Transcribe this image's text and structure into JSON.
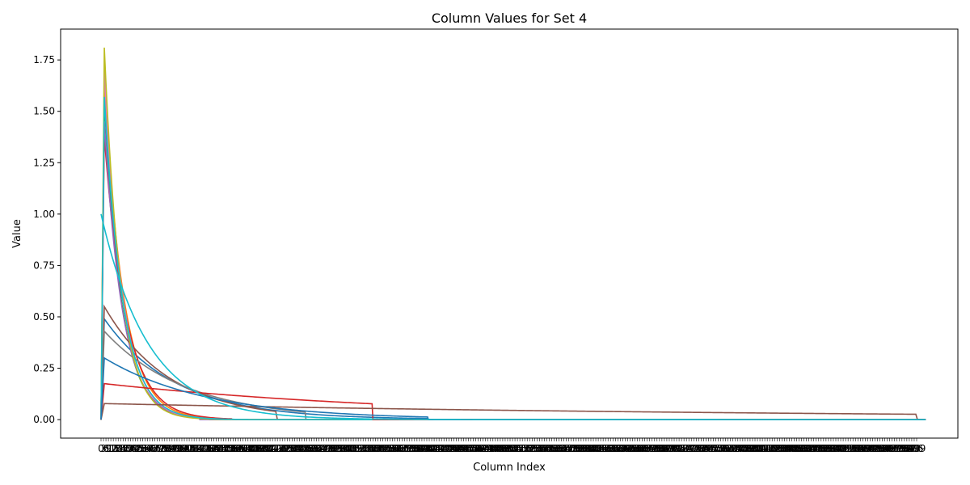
{
  "chart_data": {
    "type": "line",
    "title": "Column Values for Set 4",
    "xlabel": "Column Index",
    "ylabel": "Value",
    "xlim": [
      0,
      1000
    ],
    "ylim": [
      -0.09,
      1.9
    ],
    "yticks": [
      0.0,
      0.25,
      0.5,
      0.75,
      1.0,
      1.25,
      1.5,
      1.75
    ],
    "ytick_labels": [
      "0.00",
      "0.25",
      "0.50",
      "0.75",
      "1.00",
      "1.25",
      "1.50",
      "1.75"
    ],
    "xtick_step": 3,
    "xtick_max": 999,
    "grid": false,
    "series": [
      {
        "color": "#1f77b4",
        "peak": 0.49,
        "decay": 0.0115,
        "end": 400
      },
      {
        "color": "#ff7f0e",
        "peak": 1.62,
        "decay": 0.042,
        "end": 150
      },
      {
        "color": "#2ca02c",
        "peak": 1.55,
        "decay": 0.047,
        "end": 132
      },
      {
        "color": "#d62728",
        "peak": 1.38,
        "decay": 0.038,
        "end": 160
      },
      {
        "color": "#9467bd",
        "peak": 1.45,
        "decay": 0.045,
        "end": 120
      },
      {
        "color": "#8c564b",
        "peak": 0.55,
        "decay": 0.0125,
        "end": 215
      },
      {
        "color": "#e377c2",
        "peak": 1.7,
        "decay": 0.046,
        "end": 200
      },
      {
        "color": "#7f7f7f",
        "peak": 0.43,
        "decay": 0.01,
        "end": 250
      },
      {
        "color": "#bcbd22",
        "peak": 1.81,
        "decay": 0.05,
        "end": 210
      },
      {
        "color": "#17becf",
        "peak": 1.57,
        "decay": 0.044,
        "end": 180
      },
      {
        "color": "#d62728",
        "peak": 0.175,
        "decay": 0.0025,
        "end": 332
      },
      {
        "color": "#8c564b",
        "peak": 0.078,
        "decay": 0.0011,
        "end": 999
      },
      {
        "color": "#1f77b4",
        "peak": 0.3,
        "decay": 0.008,
        "end": 400
      },
      {
        "color": "#17becf",
        "peak": 1.0,
        "decay": 0.0172,
        "end": 999,
        "from_zero": false
      }
    ]
  }
}
